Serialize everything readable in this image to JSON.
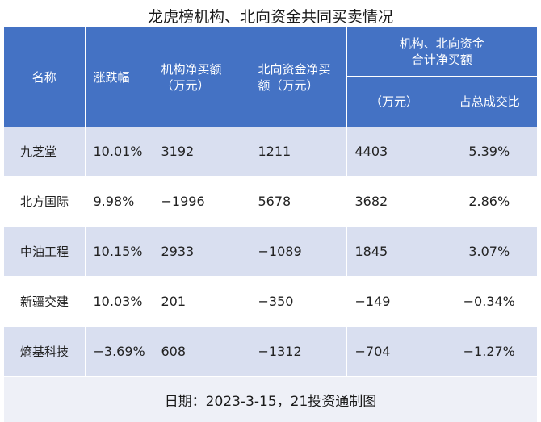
{
  "title": "龙虎榜机构、北向资金共同买卖情况",
  "headers": {
    "name": "名称",
    "change": "涨跌幅",
    "inst_line1": "机构净买额",
    "inst_line2": "（万元）",
    "north_line1": "北向资金净买",
    "north_line2": "额（万元）",
    "combined_line1": "机构、北向资金",
    "combined_line2": "合计净买额",
    "combined_sub_unit": "（万元）",
    "combined_sub_ratio": "占总成交比"
  },
  "rows": [
    {
      "name": "九芝堂",
      "change": "10.01%",
      "inst": "3192",
      "north": "1211",
      "total": "4403",
      "ratio": "5.39%"
    },
    {
      "name": "北方国际",
      "change": "9.98%",
      "inst": "−1996",
      "north": "5678",
      "total": "3682",
      "ratio": "2.86%"
    },
    {
      "name": "中油工程",
      "change": "10.15%",
      "inst": "2933",
      "north": "−1089",
      "total": "1845",
      "ratio": "3.07%"
    },
    {
      "name": "新疆交建",
      "change": "10.03%",
      "inst": "201",
      "north": "−350",
      "total": "−149",
      "ratio": "−0.34%"
    },
    {
      "name": "熵基科技",
      "change": "−3.69%",
      "inst": "608",
      "north": "−1312",
      "total": "−704",
      "ratio": "−1.27%"
    }
  ],
  "footer": "日期：2023-3-15，21投资通制图",
  "colors": {
    "header_bg": "#4472c4",
    "row_alt_bg": "#d9dff0",
    "footer_bg": "#eef0f7"
  }
}
